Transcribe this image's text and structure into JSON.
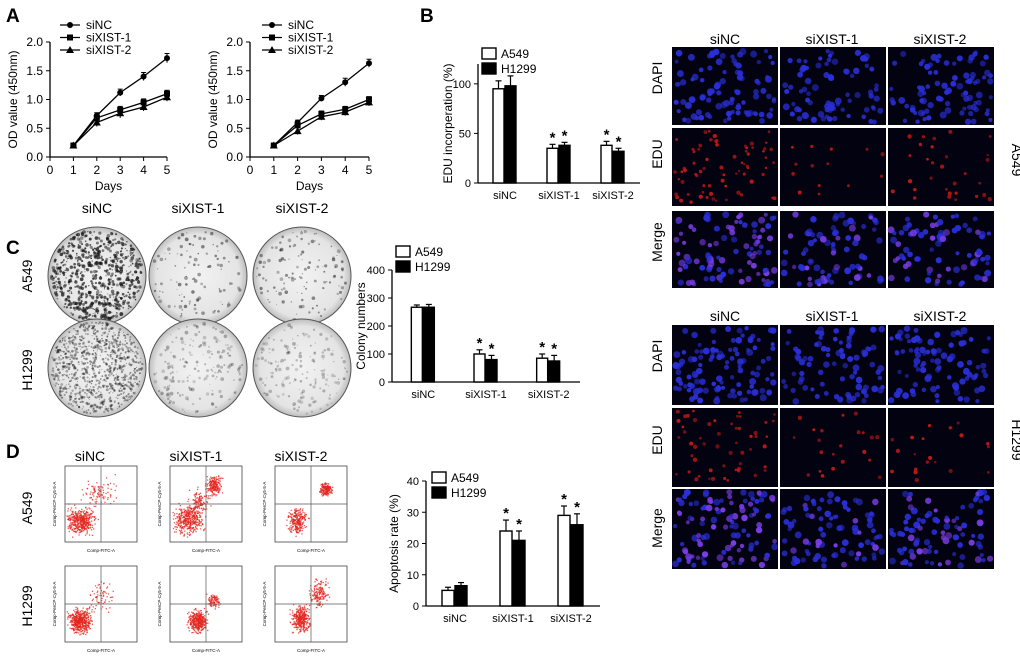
{
  "panel_labels": [
    "A",
    "B",
    "C",
    "D"
  ],
  "groups": [
    "siNC",
    "siXIST-1",
    "siXIST-2"
  ],
  "cell_lines": [
    "A549",
    "H1299"
  ],
  "image_row_labels": [
    "DAPI",
    "EDU",
    "Merge"
  ],
  "significance_mark": "*",
  "flow_axis_labels": {
    "x": "Comp-FITC-A",
    "y": "Comp-PerCP-Cy5-5-A"
  },
  "colors": {
    "dapi": "#2a2fd8",
    "edu": "#c01818",
    "merge": "#7b3de6",
    "bar_dark": "#000000",
    "bar_light": "#ffffff"
  },
  "chart_data": [
    {
      "id": "growth-a549",
      "type": "line",
      "xlabel": "Days",
      "ylabel": "OD value (450nm)",
      "xlim": [
        0,
        5
      ],
      "ylim": [
        0,
        2.0
      ],
      "xticks": [
        "0",
        "1",
        "2",
        "3",
        "4",
        "5"
      ],
      "yticks": [
        "0.0",
        "0.5",
        "1.0",
        "1.5",
        "2.0"
      ],
      "x": [
        1,
        2,
        3,
        4,
        5
      ],
      "legend": "top-left",
      "series": [
        {
          "name": "siNC",
          "marker": "circle",
          "values": [
            0.2,
            0.72,
            1.12,
            1.4,
            1.72
          ],
          "err": [
            0.03,
            0.05,
            0.06,
            0.07,
            0.08
          ]
        },
        {
          "name": "siXIST-1",
          "marker": "square",
          "values": [
            0.2,
            0.68,
            0.82,
            0.95,
            1.1
          ],
          "err": [
            0.03,
            0.06,
            0.06,
            0.06,
            0.06
          ]
        },
        {
          "name": "siXIST-2",
          "marker": "triangle",
          "values": [
            0.2,
            0.6,
            0.76,
            0.87,
            1.04
          ],
          "err": [
            0.03,
            0.07,
            0.08,
            0.07,
            0.07
          ]
        }
      ]
    },
    {
      "id": "growth-h1299",
      "type": "line",
      "xlabel": "Days",
      "ylabel": "OD value (450nm)",
      "xlim": [
        0,
        5
      ],
      "ylim": [
        0,
        2.0
      ],
      "xticks": [
        "0",
        "1",
        "2",
        "3",
        "4",
        "5"
      ],
      "yticks": [
        "0.0",
        "0.5",
        "1.0",
        "1.5",
        "2.0"
      ],
      "x": [
        1,
        2,
        3,
        4,
        5
      ],
      "legend": "top-left",
      "series": [
        {
          "name": "siNC",
          "marker": "circle",
          "values": [
            0.2,
            0.6,
            1.02,
            1.3,
            1.63
          ],
          "err": [
            0.03,
            0.04,
            0.05,
            0.07,
            0.07
          ]
        },
        {
          "name": "siXIST-1",
          "marker": "square",
          "values": [
            0.2,
            0.55,
            0.75,
            0.83,
            1.0
          ],
          "err": [
            0.03,
            0.05,
            0.05,
            0.05,
            0.05
          ]
        },
        {
          "name": "siXIST-2",
          "marker": "triangle",
          "values": [
            0.2,
            0.45,
            0.7,
            0.78,
            0.95
          ],
          "err": [
            0.03,
            0.06,
            0.06,
            0.06,
            0.06
          ]
        }
      ]
    },
    {
      "id": "edu-bars",
      "type": "bar",
      "ylabel": "EDU incorperation  (%)",
      "categories": [
        "siNC",
        "siXIST-1",
        "siXIST-2"
      ],
      "ylim": [
        0,
        120
      ],
      "yticks": [
        "0",
        "50",
        "100"
      ],
      "legend": "top-left",
      "series": [
        {
          "name": "A549",
          "values": [
            95,
            35,
            38
          ],
          "err": [
            8,
            4,
            4
          ],
          "sig": [
            false,
            true,
            true
          ]
        },
        {
          "name": "H1299",
          "values": [
            98,
            38,
            32
          ],
          "err": [
            10,
            3,
            3
          ],
          "sig": [
            false,
            true,
            true
          ]
        }
      ]
    },
    {
      "id": "colony-bars",
      "type": "bar",
      "ylabel": "Colony numbers",
      "categories": [
        "siNC",
        "siXIST-1",
        "siXIST-2"
      ],
      "ylim": [
        0,
        400
      ],
      "yticks": [
        "0",
        "100",
        "200",
        "300",
        "400"
      ],
      "legend": "top-left",
      "series": [
        {
          "name": "A549",
          "values": [
            267,
            100,
            85
          ],
          "err": [
            8,
            15,
            15
          ],
          "sig": [
            false,
            true,
            true
          ]
        },
        {
          "name": "H1299",
          "values": [
            267,
            80,
            75
          ],
          "err": [
            10,
            15,
            20
          ],
          "sig": [
            false,
            true,
            true
          ]
        }
      ]
    },
    {
      "id": "apoptosis-bars",
      "type": "bar",
      "ylabel": "Apoptosis rate (%)",
      "categories": [
        "siNC",
        "siXIST-1",
        "siXIST-2"
      ],
      "ylim": [
        0,
        40
      ],
      "yticks": [
        "0",
        "10",
        "20",
        "30",
        "40"
      ],
      "legend": "top-left",
      "series": [
        {
          "name": "A549",
          "values": [
            5,
            24,
            29
          ],
          "err": [
            1,
            3.5,
            3
          ],
          "sig": [
            false,
            true,
            true
          ]
        },
        {
          "name": "H1299",
          "values": [
            6.5,
            21,
            26
          ],
          "err": [
            1,
            3,
            3.5
          ],
          "sig": [
            false,
            true,
            true
          ]
        }
      ]
    }
  ]
}
